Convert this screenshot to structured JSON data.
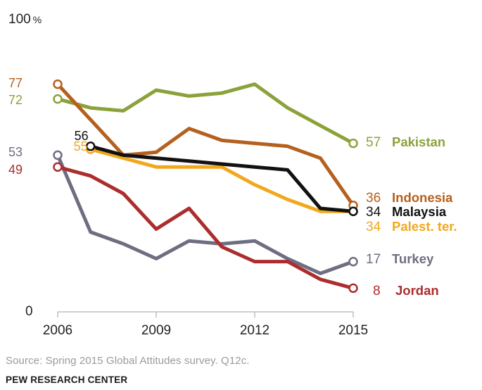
{
  "chart_data": {
    "type": "line",
    "y_top_label": "100",
    "y_unit": "%",
    "y_bottom_label": "0",
    "ylim": [
      0,
      100
    ],
    "xlim": [
      2006,
      2015
    ],
    "x_tick_labels": [
      "2006",
      "2009",
      "2012",
      "2015"
    ],
    "grid": false,
    "series": [
      {
        "name": "Pakistan",
        "color": "#8ba23b",
        "x": [
          2006,
          2007,
          2008,
          2009,
          2010,
          2011,
          2012,
          2013,
          2014,
          2015
        ],
        "values": [
          72,
          69,
          68,
          75,
          73,
          74,
          77,
          69,
          63,
          57
        ],
        "start_label": "72",
        "end_label": "57",
        "end_name": "Pakistan"
      },
      {
        "name": "Indonesia",
        "color": "#b5601e",
        "x": [
          2006,
          2007,
          2008,
          2009,
          2010,
          2011,
          2012,
          2013,
          2014,
          2015
        ],
        "values": [
          77,
          65,
          53,
          54,
          62,
          58,
          57,
          56,
          52,
          36
        ],
        "start_label": "77",
        "end_label": "36",
        "end_name": "Indonesia"
      },
      {
        "name": "Malaysia",
        "color": "#111111",
        "x": [
          2007,
          2008,
          2009,
          2010,
          2011,
          2012,
          2013,
          2014,
          2015
        ],
        "values": [
          56,
          53,
          52,
          51,
          50,
          49,
          48,
          35,
          34
        ],
        "start_label": "56",
        "end_label": "34",
        "end_name": "Malaysia"
      },
      {
        "name": "Palest. ter.",
        "color": "#f2a81d",
        "x": [
          2007,
          2008,
          2009,
          2010,
          2011,
          2012,
          2013,
          2014,
          2015
        ],
        "values": [
          55,
          52,
          49,
          49,
          49,
          43,
          38,
          34,
          34
        ],
        "start_label": "55",
        "end_label": "34",
        "end_name": "Palest. ter."
      },
      {
        "name": "Turkey",
        "color": "#6e6e82",
        "x": [
          2006,
          2007,
          2008,
          2009,
          2010,
          2011,
          2012,
          2013,
          2014,
          2015
        ],
        "values": [
          53,
          27,
          23,
          18,
          24,
          23,
          24,
          18,
          13,
          17
        ],
        "start_label": "53",
        "end_label": "17",
        "end_name": "Turkey"
      },
      {
        "name": "Jordan",
        "color": "#ac2d2d",
        "x": [
          2006,
          2007,
          2008,
          2009,
          2010,
          2011,
          2012,
          2013,
          2014,
          2015
        ],
        "values": [
          49,
          46,
          40,
          28,
          35,
          22,
          17,
          17,
          11,
          8
        ],
        "start_label": "49",
        "end_label": "8",
        "end_name": "Jordan"
      }
    ]
  },
  "source": "Source: Spring 2015 Global Attitudes survey. Q12c.",
  "organization": "PEW RESEARCH CENTER"
}
